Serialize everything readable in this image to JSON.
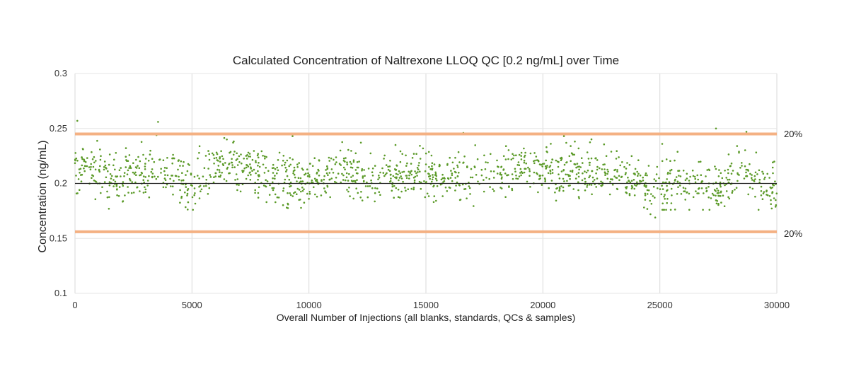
{
  "chart_data": {
    "type": "scatter",
    "title": "Calculated Concentration of Naltrexone LLOQ QC [0.2 ng/mL] over Time",
    "xlabel": "Overall Number of Injections (all blanks, standards, QCs & samples)",
    "ylabel": "Concentration (ng/mL)",
    "xlim": [
      0,
      30000
    ],
    "ylim": [
      0.1,
      0.3
    ],
    "xticks": [
      0,
      5000,
      10000,
      15000,
      20000,
      25000,
      30000
    ],
    "yticks": [
      0.1,
      0.15,
      0.2,
      0.25,
      0.3
    ],
    "xtick_labels": [
      "0",
      "5000",
      "10000",
      "15000",
      "20000",
      "25000",
      "30000"
    ],
    "ytick_labels": [
      "0.1",
      "0.15",
      "0.2",
      "0.25",
      "0.3"
    ],
    "grid": "vertical",
    "nominal_line": {
      "y": 0.2,
      "color": "#222222"
    },
    "limit_lines": [
      {
        "y": 0.245,
        "label": "20%",
        "color": "#f4b183"
      },
      {
        "y": 0.156,
        "label": "20%",
        "color": "#f4b183"
      }
    ],
    "point_color": "#5b9a28",
    "segments": [
      [
        0,
        0.218
      ],
      [
        2000,
        0.207
      ],
      [
        4000,
        0.21
      ],
      [
        5000,
        0.198
      ],
      [
        6500,
        0.222
      ],
      [
        9000,
        0.203
      ],
      [
        10000,
        0.206
      ],
      [
        11500,
        0.213
      ],
      [
        12500,
        0.204
      ],
      [
        15000,
        0.209
      ],
      [
        17000,
        0.205
      ],
      [
        19000,
        0.215
      ],
      [
        21000,
        0.21
      ],
      [
        23500,
        0.208
      ],
      [
        24500,
        0.194
      ],
      [
        26000,
        0.199
      ],
      [
        27500,
        0.197
      ],
      [
        28500,
        0.213
      ],
      [
        30000,
        0.194
      ]
    ],
    "point_count": 1500,
    "point_spread": 0.011,
    "outliers": [
      [
        100,
        0.257
      ],
      [
        3550,
        0.256
      ],
      [
        9300,
        0.243
      ],
      [
        16600,
        0.246
      ],
      [
        20900,
        0.243
      ],
      [
        27400,
        0.25
      ],
      [
        28700,
        0.247
      ],
      [
        24800,
        0.169
      ],
      [
        25100,
        0.236
      ],
      [
        1450,
        0.177
      ],
      [
        9050,
        0.178
      ],
      [
        24600,
        0.172
      ],
      [
        13700,
        0.235
      ],
      [
        21000,
        0.237
      ],
      [
        28300,
        0.234
      ]
    ]
  }
}
